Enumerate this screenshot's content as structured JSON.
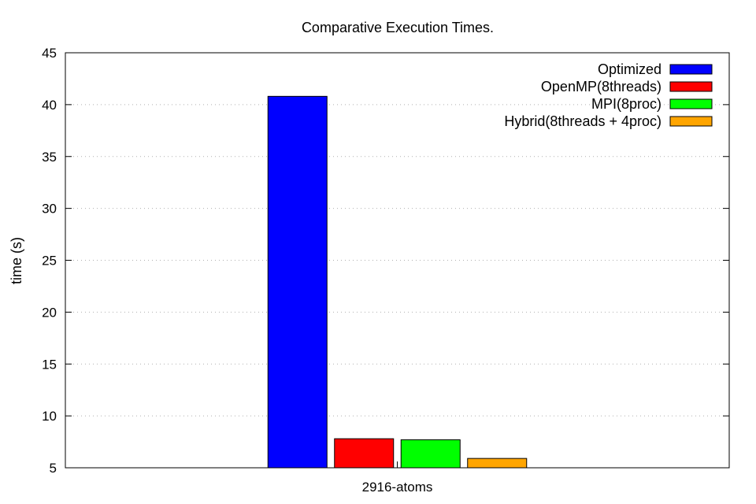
{
  "chart_data": {
    "type": "bar",
    "title": "Comparative Execution Times.",
    "xlabel": "",
    "ylabel": "time (s)",
    "ylim": [
      5,
      45
    ],
    "yticks": [
      5,
      10,
      15,
      20,
      25,
      30,
      35,
      40,
      45
    ],
    "categories": [
      "2916-atoms"
    ],
    "grid": true,
    "legend_position": "top-right",
    "series": [
      {
        "name": "Optimized",
        "values": [
          40.8
        ],
        "color": "#0000ff"
      },
      {
        "name": "OpenMP(8threads)",
        "values": [
          7.8
        ],
        "color": "#ff0000"
      },
      {
        "name": "MPI(8proc)",
        "values": [
          7.7
        ],
        "color": "#00ff00"
      },
      {
        "name": "Hybrid(8threads + 4proc)",
        "values": [
          5.9
        ],
        "color": "#ffa500"
      }
    ]
  }
}
